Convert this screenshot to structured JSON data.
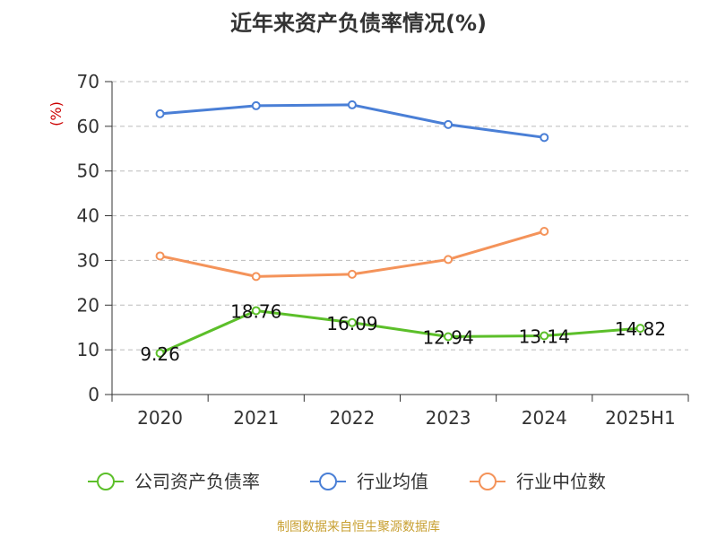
{
  "chart_data": {
    "type": "line",
    "title": "近年来资产负债率情况(%)",
    "ylabel": "(%)",
    "xlabel": "",
    "categories": [
      "2020",
      "2021",
      "2022",
      "2023",
      "2024",
      "2025H1"
    ],
    "ylim": [
      0,
      70
    ],
    "yticks": [
      0,
      10,
      20,
      30,
      40,
      50,
      60,
      70
    ],
    "grid": true,
    "legend_position": "bottom",
    "series": [
      {
        "name": "公司资产负债率",
        "color": "#5cbf2a",
        "values": [
          9.26,
          18.76,
          16.09,
          12.94,
          13.14,
          14.82
        ],
        "data_labels": [
          "9.26",
          "18.76",
          "16.09",
          "12.94",
          "13.14",
          "14.82"
        ]
      },
      {
        "name": "行业均值",
        "color": "#4a7fd6",
        "values": [
          62.8,
          64.6,
          64.8,
          60.4,
          57.5,
          null
        ]
      },
      {
        "name": "行业中位数",
        "color": "#f4935a",
        "values": [
          31.0,
          26.4,
          26.9,
          30.2,
          36.5,
          null
        ]
      }
    ],
    "source": "制图数据来自恒生聚源数据库"
  }
}
